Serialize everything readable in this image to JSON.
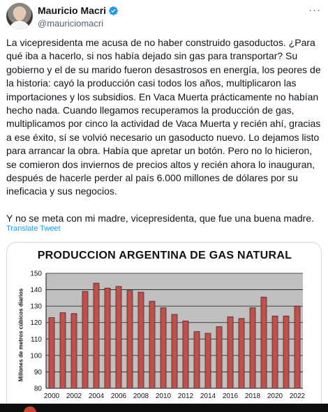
{
  "author": {
    "name": "Mauricio Macri",
    "handle": "@mauriciomacri"
  },
  "tweet": {
    "paragraph1": "La vicepresidenta me acusa de no haber construido gasoductos. ¿Para qué iba a hacerlo, si nos había dejado sin gas para transportar? Su gobierno y el de su marido fueron desastrosos en energía, los peores de la historia: cayó la producción casi todos los años, multiplicaron las importaciones y los subsidios. En Vaca Muerta prácticamente no habían hecho nada. Cuando llegamos recuperamos la producción de gas, multiplicamos por cinco la actividad de Vaca Muerta y recién ahí, gracias a ese éxito, sí se volvió necesario un gasoducto nuevo. Lo dejamos listo para arrancar la obra. Había que apretar un botón. Pero no lo hicieron, se comieron dos inviernos de precios altos y recién ahora lo inauguran, después de hacerle perder al país 6.000 millones de dólares por su ineficacia y sus negocios.",
    "paragraph2": "Y no se meta con mi madre, vicepresidenta, que fue una buena madre.",
    "translate_label": "Translate Tweet"
  },
  "icons": {
    "verified": "verified-badge-icon",
    "more": "more-options-icon"
  },
  "colors": {
    "link": "#1d9bf0",
    "verified": "#1d9bf0",
    "bar": "#c0504d",
    "plot_bg": "#c0c0c0"
  },
  "chart_data": {
    "type": "bar",
    "title": "PRODUCCION ARGENTINA DE GAS NATURAL",
    "ylabel": "Millones de metros cúbicos diarios",
    "xlabel": "",
    "categories": [
      "2000",
      "2001",
      "2002",
      "2003",
      "2004",
      "2005",
      "2006",
      "2007",
      "2008",
      "2009",
      "2010",
      "2011",
      "2012",
      "2013",
      "2014",
      "2015",
      "2016",
      "2017",
      "2018",
      "2019",
      "2020",
      "2021",
      "2022"
    ],
    "xtick_labels": [
      "2000",
      "2002",
      "2004",
      "2006",
      "2008",
      "2010",
      "2012",
      "2014",
      "2016",
      "2018",
      "2020",
      "2022"
    ],
    "values": [
      123,
      126,
      125.5,
      139,
      144,
      141,
      142,
      139.5,
      138.5,
      133,
      129,
      125,
      121,
      114.5,
      113.5,
      117.5,
      123.5,
      122.5,
      129,
      135.5,
      124,
      124,
      130
    ],
    "yticks": [
      80,
      90,
      100,
      110,
      120,
      130,
      140,
      150
    ],
    "ylim": [
      80,
      150
    ],
    "grid": true
  }
}
